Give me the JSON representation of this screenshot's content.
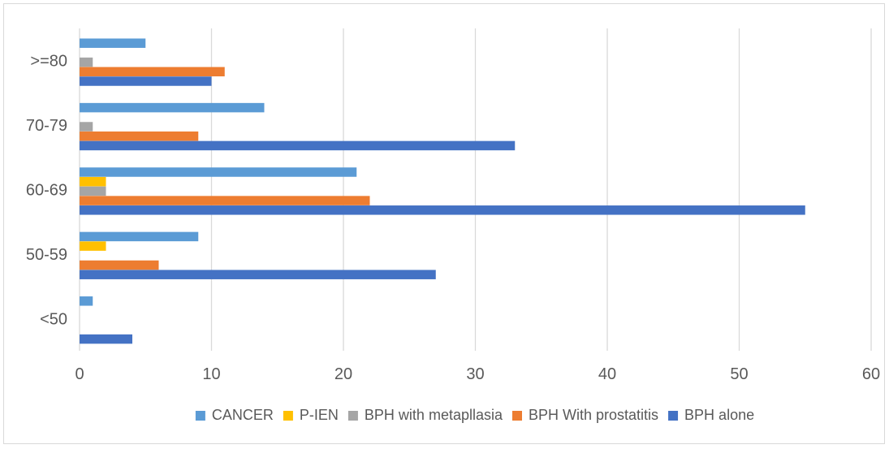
{
  "chart_data": {
    "type": "bar",
    "orientation": "horizontal",
    "title": "",
    "xlabel": "",
    "ylabel": "",
    "categories": [
      "<50",
      "50-59",
      "60-69",
      "70-79",
      ">=80"
    ],
    "series": [
      {
        "name": "CANCER",
        "color": "#5B9BD5",
        "values": [
          1,
          9,
          21,
          14,
          5
        ]
      },
      {
        "name": "P-IEN",
        "color": "#FFC000",
        "values": [
          0,
          2,
          2,
          0,
          0
        ]
      },
      {
        "name": "BPH with metapllasia",
        "color": "#A5A5A5",
        "values": [
          0,
          0,
          2,
          1,
          1
        ]
      },
      {
        "name": "BPH With prostatitis",
        "color": "#ED7D31",
        "values": [
          0,
          6,
          22,
          9,
          11
        ]
      },
      {
        "name": "BPH alone",
        "color": "#4472C4",
        "values": [
          4,
          27,
          55,
          33,
          10
        ]
      }
    ],
    "xlim": [
      0,
      60
    ],
    "xticks": [
      "0",
      "10",
      "20",
      "30",
      "40",
      "50",
      "60"
    ],
    "grid": true,
    "legend_position": "bottom"
  }
}
